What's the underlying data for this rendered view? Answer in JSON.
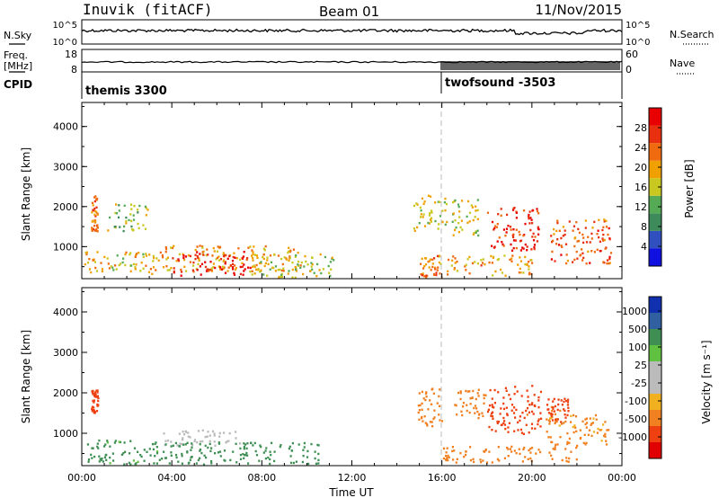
{
  "header": {
    "station": "Inuvik (fitACF)",
    "beam": "Beam 01",
    "date": "11/Nov/2015"
  },
  "sky_panel": {
    "left_label": "N.Sky",
    "left_ticks": [
      "10^5",
      "10^0"
    ],
    "right_ticks": [
      "10^5",
      "10^0"
    ],
    "right_label": "N.Search"
  },
  "freq_panel": {
    "left_label_1": "Freq.",
    "left_label_2": "[MHz]",
    "left_ticks": [
      "18",
      "8"
    ],
    "right_ticks": [
      "60",
      "0"
    ],
    "right_label": "Nave"
  },
  "cpid_panel": {
    "label": "CPID",
    "programs": [
      {
        "name": "themis 3300",
        "start_hour": 0
      },
      {
        "name": "twofsound -3503",
        "start_hour": 16
      }
    ]
  },
  "colors": {
    "power_scale": [
      "#1010e0",
      "#3050c0",
      "#3d8a5a",
      "#55aa55",
      "#c8c820",
      "#f0a000",
      "#f06a10",
      "#e83010",
      "#e80000"
    ],
    "velocity_scale": [
      "#e00000",
      "#ee4010",
      "#f08020",
      "#f0b020",
      "#bbbbbb",
      "#bbbbbb",
      "#60c040",
      "#3f8f55",
      "#3060a0",
      "#1030b0"
    ]
  },
  "chart_data": [
    {
      "type": "heatmap",
      "panel": "power",
      "ylabel": "Slant Range [km]",
      "yticks": [
        "1000",
        "2000",
        "3000",
        "4000"
      ],
      "ylim": [
        200,
        4600
      ],
      "xlim": [
        0,
        24
      ],
      "colorbar_label": "Power [dB]",
      "colorbar_ticks": [
        "4",
        "8",
        "12",
        "16",
        "20",
        "24",
        "28"
      ],
      "colorbar_range": [
        0,
        32
      ],
      "regions": [
        {
          "t0": 0.1,
          "t1": 3.5,
          "r0": 300,
          "r1": 900,
          "value": 18
        },
        {
          "t0": 0.4,
          "t1": 0.7,
          "r0": 1400,
          "r1": 2300,
          "value": 24
        },
        {
          "t0": 1.1,
          "t1": 2.9,
          "r0": 1400,
          "r1": 2100,
          "value": 14
        },
        {
          "t0": 3.5,
          "t1": 9.8,
          "r0": 400,
          "r1": 1050,
          "value": 20
        },
        {
          "t0": 4.0,
          "t1": 7.5,
          "r0": 300,
          "r1": 900,
          "value": 29
        },
        {
          "t0": 7.5,
          "t1": 11.2,
          "r0": 250,
          "r1": 850,
          "value": 16
        },
        {
          "t0": 14.7,
          "t1": 16.2,
          "r0": 1400,
          "r1": 2300,
          "value": 16
        },
        {
          "t0": 15.0,
          "t1": 16.0,
          "r0": 250,
          "r1": 800,
          "value": 22
        },
        {
          "t0": 16.2,
          "t1": 20.0,
          "r0": 300,
          "r1": 800,
          "value": 20
        },
        {
          "t0": 16.4,
          "t1": 17.6,
          "r0": 1300,
          "r1": 2200,
          "value": 16
        },
        {
          "t0": 18.0,
          "t1": 20.3,
          "r0": 900,
          "r1": 2000,
          "value": 27
        },
        {
          "t0": 20.8,
          "t1": 23.5,
          "r0": 600,
          "r1": 1700,
          "value": 24
        }
      ]
    },
    {
      "type": "heatmap",
      "panel": "velocity",
      "ylabel": "Slant Range [km]",
      "yticks": [
        "1000",
        "2000",
        "3000",
        "4000"
      ],
      "ylim": [
        200,
        4600
      ],
      "xlim": [
        0,
        24
      ],
      "xticks": [
        "00:00",
        "04:00",
        "08:00",
        "12:00",
        "16:00",
        "20:00",
        "00:00"
      ],
      "xlabel": "Time UT",
      "colorbar_label": "Velocity [m s⁻¹]",
      "colorbar_ticks": [
        "1000",
        "500",
        "100",
        "25",
        "-25",
        "-100",
        "-500",
        "-1000"
      ],
      "regions": [
        {
          "t0": 0.1,
          "t1": 3.5,
          "r0": 250,
          "r1": 850,
          "value": 150
        },
        {
          "t0": 0.4,
          "t1": 0.7,
          "r0": 1500,
          "r1": 2100,
          "value": -900
        },
        {
          "t0": 3.5,
          "t1": 7.0,
          "r0": 700,
          "r1": 1100,
          "value": 0
        },
        {
          "t0": 3.5,
          "t1": 10.5,
          "r0": 250,
          "r1": 800,
          "value": 200
        },
        {
          "t0": 14.8,
          "t1": 16.0,
          "r0": 1200,
          "r1": 2200,
          "value": -300
        },
        {
          "t0": 16.0,
          "t1": 22.0,
          "r0": 300,
          "r1": 700,
          "value": -200
        },
        {
          "t0": 16.5,
          "t1": 18.0,
          "r0": 1400,
          "r1": 2100,
          "value": -300
        },
        {
          "t0": 18.0,
          "t1": 20.4,
          "r0": 1000,
          "r1": 2200,
          "value": -800
        },
        {
          "t0": 20.6,
          "t1": 23.5,
          "r0": 700,
          "r1": 1500,
          "value": -150
        },
        {
          "t0": 20.6,
          "t1": 21.6,
          "r0": 1300,
          "r1": 1900,
          "value": -700
        }
      ]
    }
  ]
}
